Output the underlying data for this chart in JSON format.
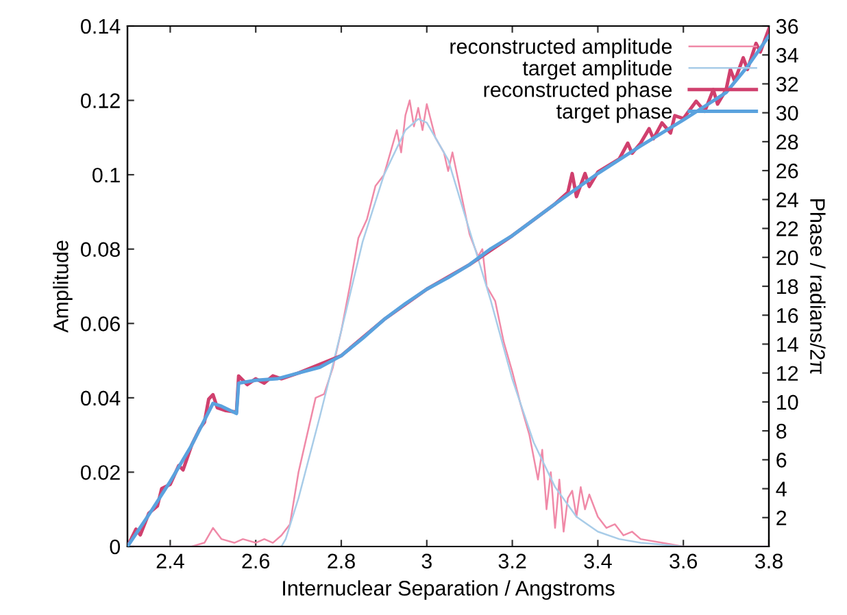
{
  "chart_data": {
    "type": "line",
    "xlabel": "Internuclear Separation / Angstroms",
    "ylabel": "Amplitude",
    "y2label": "Phase / radians/2π",
    "xlim": [
      2.3,
      3.8
    ],
    "xticks": [
      2.4,
      2.6,
      2.8,
      3,
      3.2,
      3.4,
      3.6,
      3.8
    ],
    "ylim": [
      0,
      0.14
    ],
    "yticks": [
      0,
      0.02,
      0.04,
      0.06,
      0.08,
      0.1,
      0.12,
      0.14
    ],
    "y2lim": [
      0,
      36
    ],
    "y2ticks": [
      2,
      4,
      6,
      8,
      10,
      12,
      14,
      16,
      18,
      20,
      22,
      24,
      26,
      28,
      30,
      32,
      34,
      36
    ],
    "legend": "top right",
    "grid": false,
    "series": [
      {
        "name": "reconstructed amplitude",
        "color": "#f08aa8",
        "x": [
          2.3,
          2.45,
          2.48,
          2.5,
          2.52,
          2.55,
          2.57,
          2.6,
          2.62,
          2.64,
          2.66,
          2.68,
          2.7,
          2.72,
          2.74,
          2.76,
          2.78,
          2.8,
          2.82,
          2.84,
          2.86,
          2.88,
          2.9,
          2.92,
          2.93,
          2.94,
          2.95,
          2.96,
          2.97,
          2.98,
          2.99,
          3.0,
          3.02,
          3.04,
          3.05,
          3.06,
          3.08,
          3.1,
          3.12,
          3.13,
          3.14,
          3.16,
          3.18,
          3.2,
          3.22,
          3.24,
          3.26,
          3.27,
          3.28,
          3.29,
          3.3,
          3.31,
          3.32,
          3.33,
          3.34,
          3.35,
          3.36,
          3.37,
          3.38,
          3.4,
          3.42,
          3.44,
          3.46,
          3.48,
          3.5,
          3.55,
          3.6,
          3.8
        ],
        "values": [
          0,
          0,
          0.001,
          0.005,
          0.002,
          0.001,
          0.002,
          0.001,
          0.002,
          0.001,
          0.003,
          0.006,
          0.02,
          0.03,
          0.04,
          0.041,
          0.048,
          0.058,
          0.07,
          0.083,
          0.088,
          0.097,
          0.1,
          0.108,
          0.112,
          0.106,
          0.116,
          0.12,
          0.113,
          0.118,
          0.112,
          0.119,
          0.11,
          0.106,
          0.101,
          0.106,
          0.095,
          0.084,
          0.078,
          0.08,
          0.07,
          0.066,
          0.055,
          0.047,
          0.038,
          0.03,
          0.018,
          0.026,
          0.01,
          0.02,
          0.005,
          0.018,
          0.004,
          0.013,
          0.015,
          0.008,
          0.016,
          0.01,
          0.014,
          0.008,
          0.005,
          0.006,
          0.003,
          0.004,
          0.002,
          0.001,
          0,
          0
        ]
      },
      {
        "name": "target amplitude",
        "color": "#a8cce8",
        "x": [
          2.3,
          2.66,
          2.67,
          2.7,
          2.75,
          2.8,
          2.85,
          2.9,
          2.95,
          2.98,
          3.0,
          3.05,
          3.1,
          3.15,
          3.2,
          3.25,
          3.3,
          3.35,
          3.4,
          3.45,
          3.5,
          3.6,
          3.8
        ],
        "values": [
          0,
          0,
          0.002,
          0.013,
          0.035,
          0.058,
          0.082,
          0.1,
          0.112,
          0.115,
          0.114,
          0.104,
          0.085,
          0.066,
          0.045,
          0.028,
          0.016,
          0.008,
          0.004,
          0.002,
          0.001,
          0,
          0
        ]
      },
      {
        "name": "reconstructed phase",
        "color": "#d0406e",
        "axis": "y2",
        "x": [
          2.3,
          2.32,
          2.33,
          2.35,
          2.37,
          2.38,
          2.4,
          2.42,
          2.43,
          2.45,
          2.47,
          2.48,
          2.49,
          2.5,
          2.51,
          2.53,
          2.555,
          2.56,
          2.58,
          2.6,
          2.62,
          2.64,
          2.66,
          2.68,
          2.7,
          2.8,
          2.9,
          3.0,
          3.1,
          3.2,
          3.3,
          3.33,
          3.34,
          3.35,
          3.37,
          3.38,
          3.4,
          3.45,
          3.47,
          3.48,
          3.5,
          3.52,
          3.53,
          3.55,
          3.57,
          3.58,
          3.6,
          3.63,
          3.65,
          3.67,
          3.68,
          3.7,
          3.71,
          3.72,
          3.74,
          3.75,
          3.77,
          3.78,
          3.8
        ],
        "values": [
          0,
          1.2,
          0.8,
          2.3,
          2.8,
          4.0,
          4.3,
          5.6,
          5.3,
          7.0,
          8.2,
          8.6,
          10.2,
          10.5,
          9.6,
          9.4,
          9.3,
          11.8,
          11.2,
          11.6,
          11.3,
          11.8,
          11.6,
          11.8,
          12.0,
          13.2,
          15.7,
          17.8,
          19.5,
          21.5,
          23.7,
          24.5,
          25.8,
          24.2,
          25.8,
          24.9,
          25.9,
          26.8,
          27.9,
          27.2,
          27.9,
          28.9,
          28.2,
          29.3,
          28.6,
          29.8,
          29.6,
          30.8,
          30.1,
          31.6,
          30.6,
          31.6,
          33.0,
          32.2,
          33.8,
          33.0,
          34.8,
          34.2,
          35.8
        ]
      },
      {
        "name": "target phase",
        "color": "#5aa2de",
        "axis": "y2",
        "x": [
          2.3,
          2.35,
          2.4,
          2.45,
          2.5,
          2.52,
          2.555,
          2.56,
          2.6,
          2.65,
          2.7,
          2.75,
          2.8,
          2.85,
          2.9,
          2.95,
          3.0,
          3.05,
          3.1,
          3.15,
          3.2,
          3.3,
          3.4,
          3.5,
          3.6,
          3.7,
          3.75,
          3.8
        ],
        "values": [
          0,
          2.2,
          4.5,
          7.0,
          9.9,
          9.7,
          9.2,
          11.3,
          11.5,
          11.6,
          12.0,
          12.4,
          13.2,
          14.4,
          15.7,
          16.8,
          17.8,
          18.6,
          19.5,
          20.6,
          21.5,
          23.7,
          25.8,
          27.7,
          29.5,
          31.4,
          33.2,
          35.3
        ]
      }
    ]
  }
}
